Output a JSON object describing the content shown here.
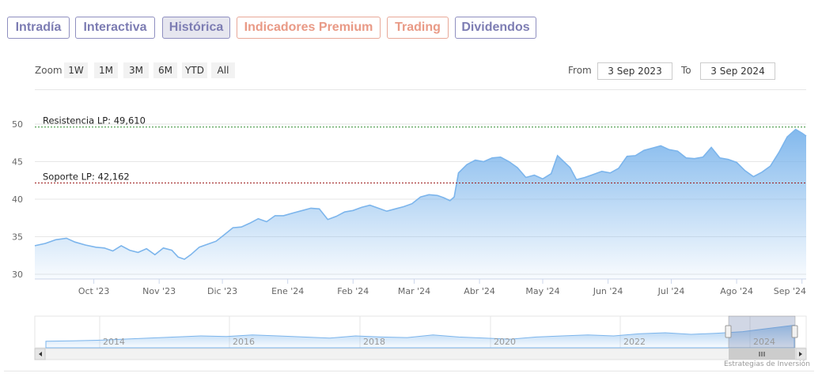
{
  "tabs": [
    {
      "label": "Intradía",
      "active": false,
      "color": "#7d7db3"
    },
    {
      "label": "Interactiva",
      "active": false,
      "color": "#7d7db3"
    },
    {
      "label": "Histórica",
      "active": true,
      "color": "#7d7db3"
    },
    {
      "label": "Indicadores Premium",
      "active": false,
      "color": "#e99a86"
    },
    {
      "label": "Trading",
      "active": false,
      "color": "#e99a86"
    },
    {
      "label": "Dividendos",
      "active": false,
      "color": "#7d7db3"
    }
  ],
  "zoom": {
    "label": "Zoom",
    "buttons": [
      "1W",
      "1M",
      "3M",
      "6M",
      "YTD",
      "All"
    ]
  },
  "range": {
    "from_label": "From",
    "from_value": "3 Sep 2023",
    "to_label": "To",
    "to_value": "3 Sep 2024"
  },
  "credits": "Estrategias de Inversión",
  "chart_data": {
    "type": "area",
    "title": "",
    "xlabel": "",
    "ylabel": "",
    "ylim": [
      30,
      50
    ],
    "yticks": [
      30,
      35,
      40,
      45,
      50
    ],
    "grid": true,
    "x_tick_labels": [
      "Oct '23",
      "Nov '23",
      "Dic '23",
      "Ene '24",
      "Feb '24",
      "Mar '24",
      "Abr '24",
      "May '24",
      "Jun '24",
      "Jul '24",
      "Ago '24",
      "Sep '24"
    ],
    "x_tick_dates": [
      "2023-10-01",
      "2023-11-01",
      "2023-12-01",
      "2024-01-01",
      "2024-02-01",
      "2024-03-01",
      "2024-04-01",
      "2024-05-01",
      "2024-06-01",
      "2024-07-01",
      "2024-08-01",
      "2024-09-01"
    ],
    "x_range": [
      "2023-09-03",
      "2024-09-03"
    ],
    "series": [
      {
        "color": "#7cb5ec",
        "points": [
          [
            "2023-09-03",
            33.8
          ],
          [
            "2023-09-08",
            34.1
          ],
          [
            "2023-09-13",
            34.6
          ],
          [
            "2023-09-18",
            34.8
          ],
          [
            "2023-09-22",
            34.3
          ],
          [
            "2023-09-27",
            33.9
          ],
          [
            "2023-10-02",
            33.6
          ],
          [
            "2023-10-06",
            33.5
          ],
          [
            "2023-10-10",
            33.1
          ],
          [
            "2023-10-14",
            33.8
          ],
          [
            "2023-10-18",
            33.2
          ],
          [
            "2023-10-22",
            32.9
          ],
          [
            "2023-10-26",
            33.4
          ],
          [
            "2023-10-30",
            32.6
          ],
          [
            "2023-11-03",
            33.5
          ],
          [
            "2023-11-07",
            33.2
          ],
          [
            "2023-11-10",
            32.3
          ],
          [
            "2023-11-13",
            32.0
          ],
          [
            "2023-11-16",
            32.6
          ],
          [
            "2023-11-20",
            33.6
          ],
          [
            "2023-11-24",
            34.0
          ],
          [
            "2023-11-28",
            34.4
          ],
          [
            "2023-12-02",
            35.3
          ],
          [
            "2023-12-06",
            36.2
          ],
          [
            "2023-12-10",
            36.3
          ],
          [
            "2023-12-14",
            36.8
          ],
          [
            "2023-12-18",
            37.4
          ],
          [
            "2023-12-22",
            37.0
          ],
          [
            "2023-12-26",
            37.8
          ],
          [
            "2023-12-30",
            37.8
          ],
          [
            "2024-01-04",
            38.2
          ],
          [
            "2024-01-08",
            38.5
          ],
          [
            "2024-01-12",
            38.8
          ],
          [
            "2024-01-16",
            38.7
          ],
          [
            "2024-01-20",
            37.3
          ],
          [
            "2024-01-24",
            37.7
          ],
          [
            "2024-01-28",
            38.3
          ],
          [
            "2024-02-01",
            38.5
          ],
          [
            "2024-02-05",
            38.9
          ],
          [
            "2024-02-09",
            39.2
          ],
          [
            "2024-02-13",
            38.8
          ],
          [
            "2024-02-17",
            38.4
          ],
          [
            "2024-02-21",
            38.7
          ],
          [
            "2024-02-25",
            39.0
          ],
          [
            "2024-02-29",
            39.4
          ],
          [
            "2024-03-04",
            40.3
          ],
          [
            "2024-03-08",
            40.6
          ],
          [
            "2024-03-12",
            40.5
          ],
          [
            "2024-03-15",
            40.2
          ],
          [
            "2024-03-18",
            39.8
          ],
          [
            "2024-03-20",
            40.3
          ],
          [
            "2024-03-22",
            43.5
          ],
          [
            "2024-03-26",
            44.6
          ],
          [
            "2024-03-30",
            45.2
          ],
          [
            "2024-04-03",
            45.0
          ],
          [
            "2024-04-07",
            45.5
          ],
          [
            "2024-04-11",
            45.6
          ],
          [
            "2024-04-15",
            45.0
          ],
          [
            "2024-04-19",
            44.2
          ],
          [
            "2024-04-23",
            42.9
          ],
          [
            "2024-04-27",
            43.2
          ],
          [
            "2024-05-01",
            42.7
          ],
          [
            "2024-05-05",
            43.4
          ],
          [
            "2024-05-08",
            45.8
          ],
          [
            "2024-05-11",
            45.0
          ],
          [
            "2024-05-14",
            44.2
          ],
          [
            "2024-05-17",
            42.6
          ],
          [
            "2024-05-21",
            42.9
          ],
          [
            "2024-05-25",
            43.3
          ],
          [
            "2024-05-29",
            43.7
          ],
          [
            "2024-06-02",
            43.5
          ],
          [
            "2024-06-06",
            44.1
          ],
          [
            "2024-06-10",
            45.7
          ],
          [
            "2024-06-14",
            45.8
          ],
          [
            "2024-06-18",
            46.5
          ],
          [
            "2024-06-22",
            46.8
          ],
          [
            "2024-06-26",
            47.1
          ],
          [
            "2024-06-30",
            46.6
          ],
          [
            "2024-07-04",
            46.4
          ],
          [
            "2024-07-08",
            45.5
          ],
          [
            "2024-07-12",
            45.4
          ],
          [
            "2024-07-16",
            45.6
          ],
          [
            "2024-07-20",
            46.9
          ],
          [
            "2024-07-24",
            45.5
          ],
          [
            "2024-07-28",
            45.3
          ],
          [
            "2024-08-01",
            44.9
          ],
          [
            "2024-08-05",
            43.8
          ],
          [
            "2024-08-09",
            43.0
          ],
          [
            "2024-08-13",
            43.6
          ],
          [
            "2024-08-17",
            44.4
          ],
          [
            "2024-08-21",
            46.2
          ],
          [
            "2024-08-25",
            48.3
          ],
          [
            "2024-08-29",
            49.3
          ],
          [
            "2024-09-01",
            48.8
          ],
          [
            "2024-09-03",
            48.4
          ]
        ]
      }
    ],
    "annotations": [
      {
        "label": "Resistencia LP: 49,610",
        "value": 49.61,
        "color": "#2e8b2e"
      },
      {
        "label": "Soporte LP: 42,162",
        "value": 42.162,
        "color": "#9c1b1b"
      }
    ],
    "navigator": {
      "year_labels": [
        "2014",
        "2016",
        "2018",
        "2020",
        "2022",
        "2024"
      ],
      "values": [
        31,
        31.5,
        32,
        33,
        34,
        35,
        36,
        35.5,
        37,
        36,
        35,
        34,
        36,
        35,
        34.5,
        37,
        35,
        34,
        33,
        35,
        36,
        37,
        36,
        38,
        39,
        37.5,
        38.5,
        40,
        43,
        46
      ]
    }
  }
}
